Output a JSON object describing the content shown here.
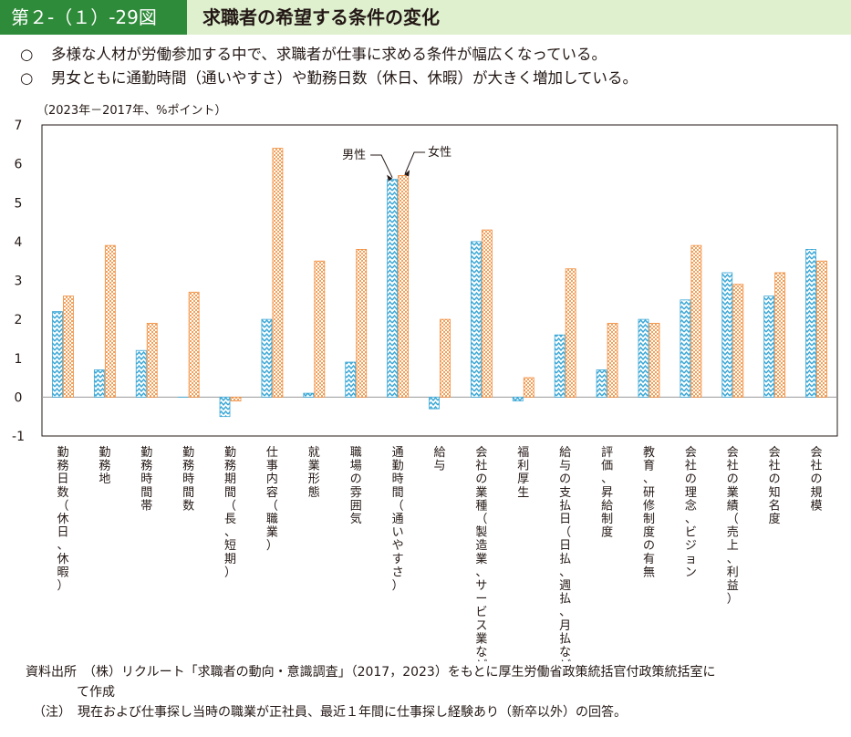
{
  "header": {
    "figure_label": "第２-（１）-29図",
    "title": "求職者の希望する条件の変化"
  },
  "bullets": [
    {
      "mark": "○",
      "text": "多様な人材が労働参加する中で、求職者が仕事に求める条件が幅広くなっている。"
    },
    {
      "mark": "○",
      "text": "男女ともに通勤時間（通いやすさ）や勤務日数（休日、休暇）が大きく増加している。"
    }
  ],
  "unit_note": "（2023年－2017年、%ポイント）",
  "chart_data": {
    "type": "bar",
    "title": "",
    "xlabel": "",
    "ylabel": "",
    "ylim": [
      -1,
      7
    ],
    "yticks": [
      -1,
      0,
      1,
      2,
      3,
      4,
      5,
      6,
      7
    ],
    "grid": false,
    "categories": [
      "勤務日数（休日、休暇）",
      "勤務地",
      "勤務時間帯",
      "勤務時間数",
      "勤務期間（長、短期）",
      "仕事内容（職業）",
      "就業形態",
      "職場の雰囲気",
      "通勤時間（通いやすさ）",
      "給与",
      "会社の業種（製造業、サービス業など）",
      "福利厚生",
      "給与の支払日（日払、週払、月払など）",
      "評価、昇給制度",
      "教育、研修制度の有無",
      "会社の理念、ビジョン",
      "会社の業績（売上、利益）",
      "会社の知名度",
      "会社の規模"
    ],
    "series": [
      {
        "name": "男性",
        "color": "#3aa7d6",
        "values": [
          2.2,
          0.7,
          1.2,
          0.0,
          -0.5,
          2.0,
          0.1,
          0.9,
          5.6,
          -0.3,
          4.0,
          -0.1,
          1.6,
          0.7,
          2.0,
          2.5,
          3.2,
          2.6,
          3.8
        ]
      },
      {
        "name": "女性",
        "color": "#f08c3c",
        "values": [
          2.6,
          3.9,
          1.9,
          2.7,
          -0.1,
          6.4,
          3.5,
          3.8,
          5.7,
          2.0,
          4.3,
          0.5,
          3.3,
          1.9,
          1.9,
          3.9,
          2.9,
          3.2,
          3.5
        ]
      }
    ],
    "annotations": [
      "男性",
      "女性"
    ]
  },
  "source": {
    "line1": "資料出所　（株）リクルート「求職者の動向・意識調査」（2017，2023）をもとに厚生労働省政策統括官付政策統括室に",
    "line2": "て作成",
    "note": "（注）　現在および仕事探し当時の職業が正社員、最近１年間に仕事探し経験あり（新卒以外）の回答。"
  }
}
